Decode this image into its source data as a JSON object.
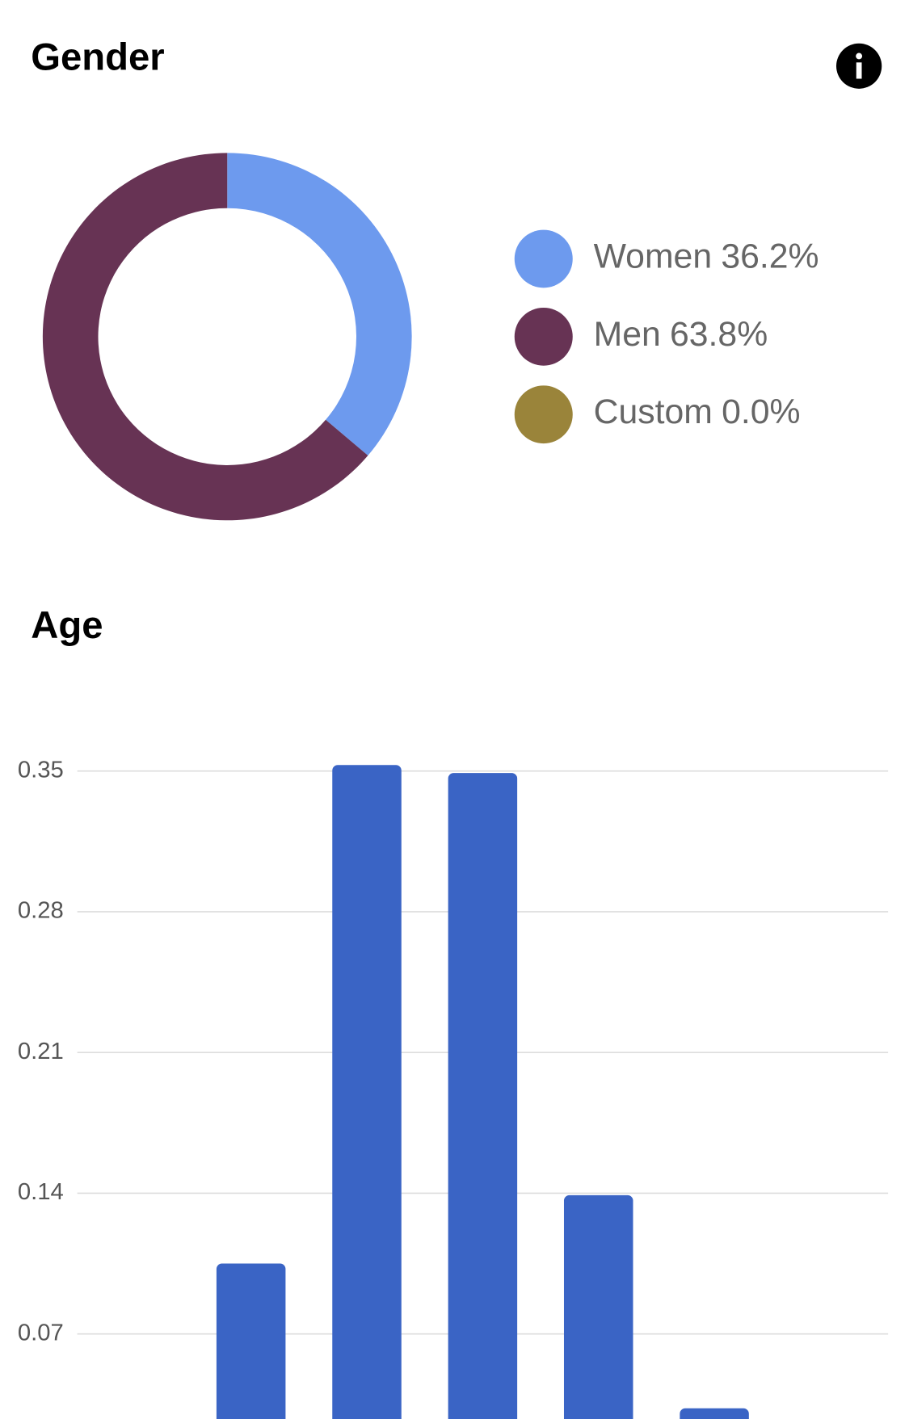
{
  "chart_data": [
    {
      "type": "pie",
      "title": "Gender",
      "categories": [
        "Women",
        "Men",
        "Custom"
      ],
      "values": [
        36.2,
        63.8,
        0.0
      ],
      "value_labels": [
        "36.2%",
        "63.8%",
        "0.0%"
      ],
      "colors": [
        "#6d9aee",
        "#673354",
        "#9a843a"
      ]
    },
    {
      "type": "bar",
      "title": "Age",
      "categories": [
        null,
        null,
        null,
        null,
        null,
        null,
        null
      ],
      "values": [
        0,
        0.105,
        0.353,
        0.349,
        0.139,
        0.033,
        0
      ],
      "color": "#3a64c5",
      "ylim": [
        0,
        0.35
      ],
      "yticks": [
        0.07,
        0.14,
        0.21,
        0.28,
        0.35
      ],
      "grid": true
    }
  ]
}
